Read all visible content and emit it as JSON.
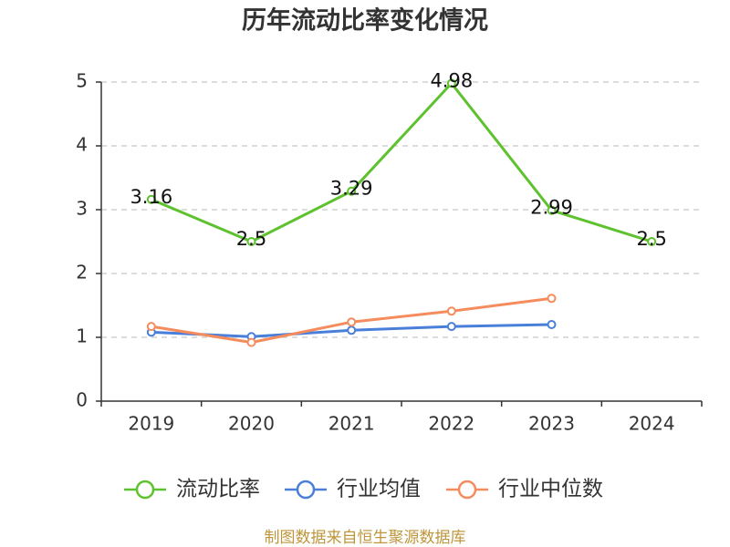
{
  "chart_data": {
    "type": "line",
    "title": "历年流动比率变化情况",
    "categories": [
      "2019",
      "2020",
      "2021",
      "2022",
      "2023",
      "2024"
    ],
    "yticks": [
      0,
      1,
      2,
      3,
      4,
      5
    ],
    "ylim": [
      0,
      5
    ],
    "grid": true,
    "legend_position": "bottom",
    "series": [
      {
        "name": "流动比率",
        "color": "#5ec22e",
        "data_labels": true,
        "values": [
          3.16,
          2.5,
          3.29,
          4.98,
          2.99,
          2.5
        ]
      },
      {
        "name": "行业均值",
        "color": "#4a7fd9",
        "data_labels": false,
        "values": [
          1.08,
          1.01,
          1.11,
          1.17,
          1.2,
          null
        ]
      },
      {
        "name": "行业中位数",
        "color": "#f58c5d",
        "data_labels": false,
        "values": [
          1.17,
          0.92,
          1.24,
          1.41,
          1.61,
          null
        ]
      }
    ]
  },
  "footer": {
    "source_note": "制图数据来自恒生聚源数据库",
    "color": "#be963c"
  }
}
